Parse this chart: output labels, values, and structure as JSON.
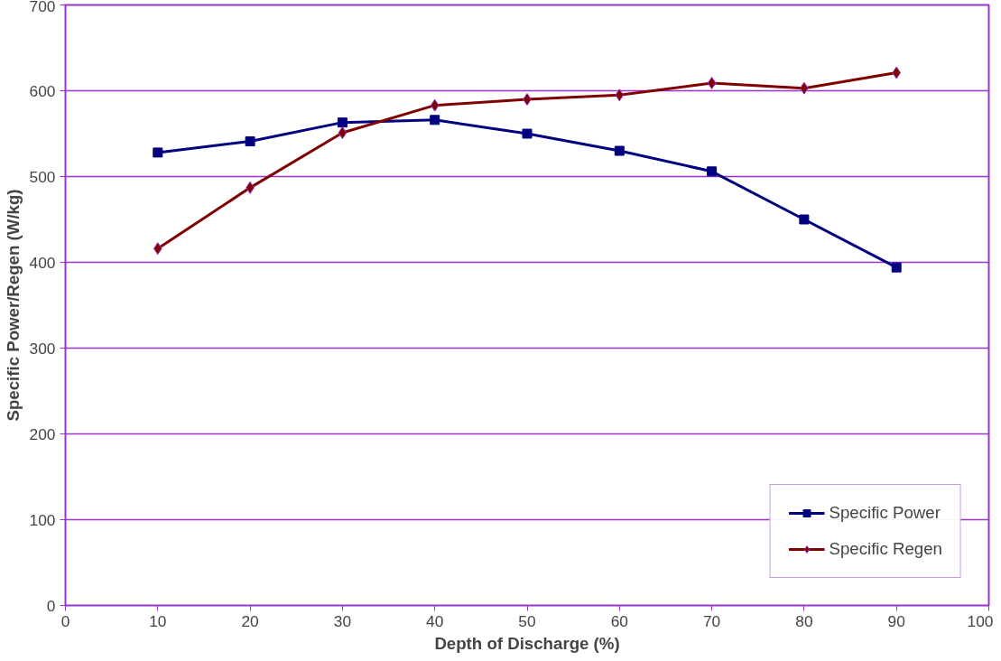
{
  "chart_data": {
    "type": "line",
    "xlabel": "Depth of Discharge (%)",
    "ylabel": "Specific Power/Regen (W/kg)",
    "x": [
      10,
      20,
      30,
      40,
      50,
      60,
      70,
      80,
      90
    ],
    "series": [
      {
        "name": "Specific Power",
        "color": "#000080",
        "marker": "square",
        "values": [
          528,
          541,
          563,
          566,
          550,
          530,
          506,
          450,
          394
        ]
      },
      {
        "name": "Specific Regen",
        "color": "#800000",
        "marker": "diamond",
        "values": [
          416,
          487,
          551,
          583,
          590,
          595,
          609,
          603,
          621
        ]
      }
    ],
    "xlim": [
      0,
      100
    ],
    "xticks": [
      0,
      10,
      20,
      30,
      40,
      50,
      60,
      70,
      80,
      90,
      100
    ],
    "ylim": [
      0,
      700
    ],
    "yticks": [
      0,
      100,
      200,
      300,
      400,
      500,
      600,
      700
    ],
    "grid": "y",
    "legend": "bottom right",
    "line_style": "solid"
  }
}
